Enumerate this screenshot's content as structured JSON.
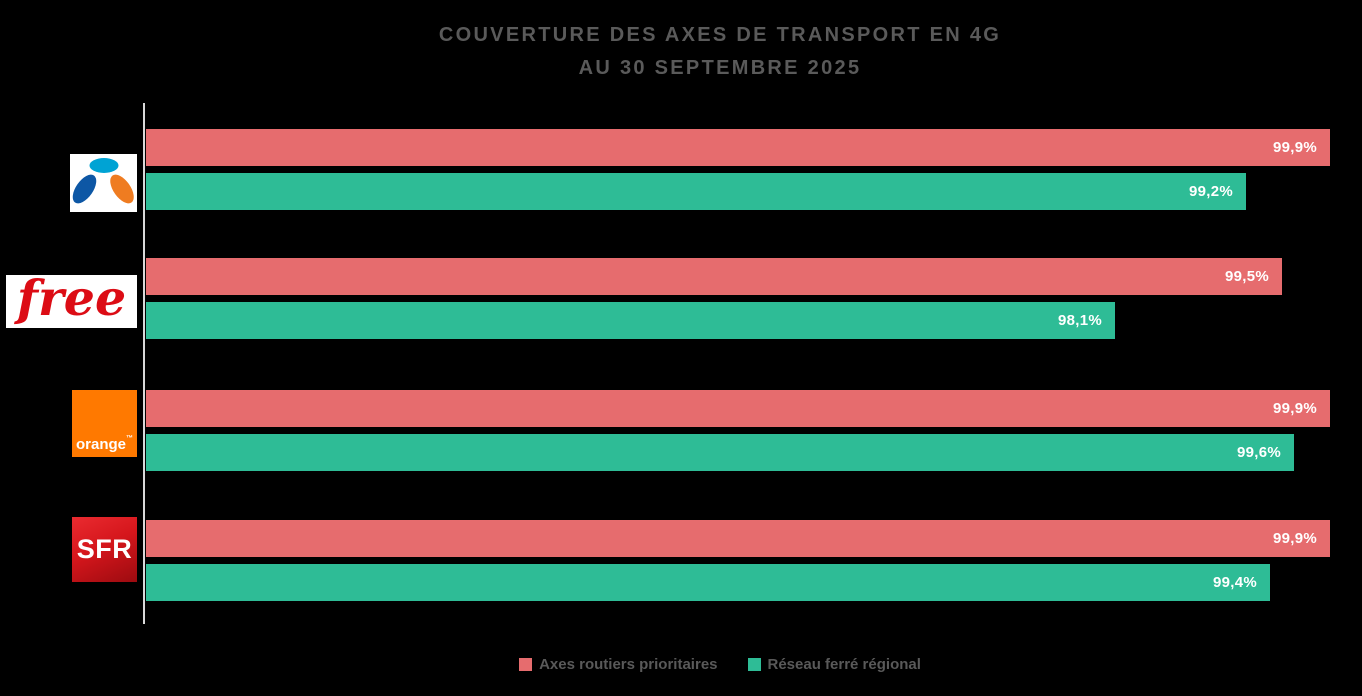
{
  "title": {
    "line1": "COUVERTURE DES AXES DE TRANSPORT EN 4G",
    "line2": "AU 30 SEPTEMBRE 2025",
    "color": "#5a5a5a"
  },
  "chart_data": {
    "type": "bar",
    "orientation": "horizontal",
    "title": "COUVERTURE DES AXES DE TRANSPORT EN 4G AU 30 SEPTEMBRE 2025",
    "categories": [
      "Bouygues Telecom",
      "Free",
      "Orange",
      "SFR"
    ],
    "series": [
      {
        "name": "Axes routiers prioritaires",
        "color": "#e66c6e",
        "values": [
          99.9,
          99.5,
          99.9,
          99.9
        ],
        "labels": [
          "99,9%",
          "99,5%",
          "99,9%",
          "99,9%"
        ]
      },
      {
        "name": "Réseau ferré régional",
        "color": "#2ebc96",
        "values": [
          99.2,
          98.1,
          99.6,
          99.4
        ],
        "labels": [
          "99,2%",
          "98,1%",
          "99,6%",
          "99,4%"
        ]
      }
    ],
    "xlim": [
      90,
      100
    ],
    "grid": false,
    "legend_position": "bottom",
    "value_label_color": "#ffffff",
    "background": "#000000",
    "axis_line_color": "#d9d9d9"
  },
  "logos": {
    "bouygues": {
      "bg": "#ffffff",
      "petal_top": "#00a3d4",
      "petal_left": "#0d57a5",
      "petal_right": "#ef7c21"
    },
    "free": {
      "text": "free",
      "bg": "#ffffff",
      "color": "#dc0c15"
    },
    "orange": {
      "text": "orange",
      "tm": "™",
      "bg": "#ff7900",
      "color": "#ffffff"
    },
    "sfr": {
      "text": "SFR",
      "bg": "linear-gradient(155deg, #ea2b30 0%, #d5161c 45%, #9c0b10 100%)",
      "color": "#ffffff"
    }
  }
}
